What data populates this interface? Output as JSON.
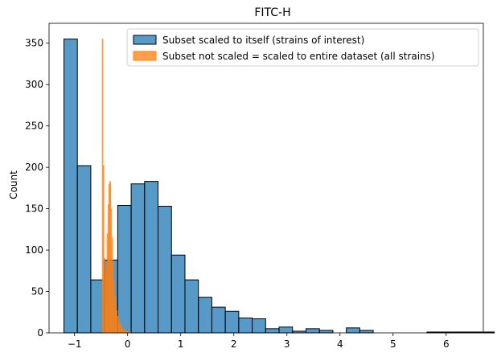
{
  "chart_data": {
    "type": "histogram",
    "title": "FITC-H",
    "xlabel": "",
    "ylabel": "Count",
    "xlim": [
      -1.48,
      6.7
    ],
    "ylim": [
      0,
      374
    ],
    "xticks": [
      -1,
      0,
      1,
      2,
      3,
      4,
      5,
      6
    ],
    "yticks": [
      0,
      50,
      100,
      150,
      200,
      250,
      300,
      350
    ],
    "grid": false,
    "legend_position": "top-right",
    "series": [
      {
        "name": "Subset scaled to itself (strains of interest)",
        "color": "#1f77b4",
        "bin_start": -1.2,
        "bin_width": 0.2533,
        "counts": [
          355,
          202,
          64,
          88,
          154,
          180,
          183,
          153,
          94,
          64,
          43,
          31,
          26,
          18,
          17,
          5,
          7,
          2,
          5,
          3,
          0,
          6,
          3,
          0,
          0,
          0,
          0,
          1,
          1,
          1,
          1,
          1
        ]
      },
      {
        "name": "Subset not scaled = scaled to entire dataset (all strains)",
        "color": "#ff7f0e",
        "bins": [
          {
            "x": -0.48,
            "w": 0.018,
            "count": 355
          },
          {
            "x": -0.462,
            "w": 0.018,
            "count": 202
          },
          {
            "x": -0.444,
            "w": 0.018,
            "count": 90
          },
          {
            "x": -0.426,
            "w": 0.018,
            "count": 70
          },
          {
            "x": -0.408,
            "w": 0.018,
            "count": 80
          },
          {
            "x": -0.39,
            "w": 0.018,
            "count": 120
          },
          {
            "x": -0.372,
            "w": 0.018,
            "count": 155
          },
          {
            "x": -0.354,
            "w": 0.018,
            "count": 180
          },
          {
            "x": -0.336,
            "w": 0.018,
            "count": 183
          },
          {
            "x": -0.318,
            "w": 0.018,
            "count": 150
          },
          {
            "x": -0.3,
            "w": 0.018,
            "count": 115
          },
          {
            "x": -0.282,
            "w": 0.018,
            "count": 85
          },
          {
            "x": -0.264,
            "w": 0.018,
            "count": 62
          },
          {
            "x": -0.246,
            "w": 0.018,
            "count": 45
          },
          {
            "x": -0.228,
            "w": 0.018,
            "count": 35
          },
          {
            "x": -0.21,
            "w": 0.018,
            "count": 27
          },
          {
            "x": -0.192,
            "w": 0.018,
            "count": 20
          },
          {
            "x": -0.174,
            "w": 0.018,
            "count": 16
          },
          {
            "x": -0.156,
            "w": 0.018,
            "count": 12
          },
          {
            "x": -0.138,
            "w": 0.018,
            "count": 9
          },
          {
            "x": -0.12,
            "w": 0.018,
            "count": 7
          },
          {
            "x": -0.102,
            "w": 0.018,
            "count": 5
          },
          {
            "x": -0.084,
            "w": 0.018,
            "count": 4
          },
          {
            "x": -0.066,
            "w": 0.018,
            "count": 3
          },
          {
            "x": -0.048,
            "w": 0.018,
            "count": 3
          },
          {
            "x": -0.03,
            "w": 0.018,
            "count": 2
          },
          {
            "x": -0.012,
            "w": 0.018,
            "count": 2
          },
          {
            "x": 0.006,
            "w": 0.018,
            "count": 1
          },
          {
            "x": 0.024,
            "w": 0.018,
            "count": 1
          },
          {
            "x": 0.042,
            "w": 0.018,
            "count": 1
          }
        ]
      }
    ]
  }
}
